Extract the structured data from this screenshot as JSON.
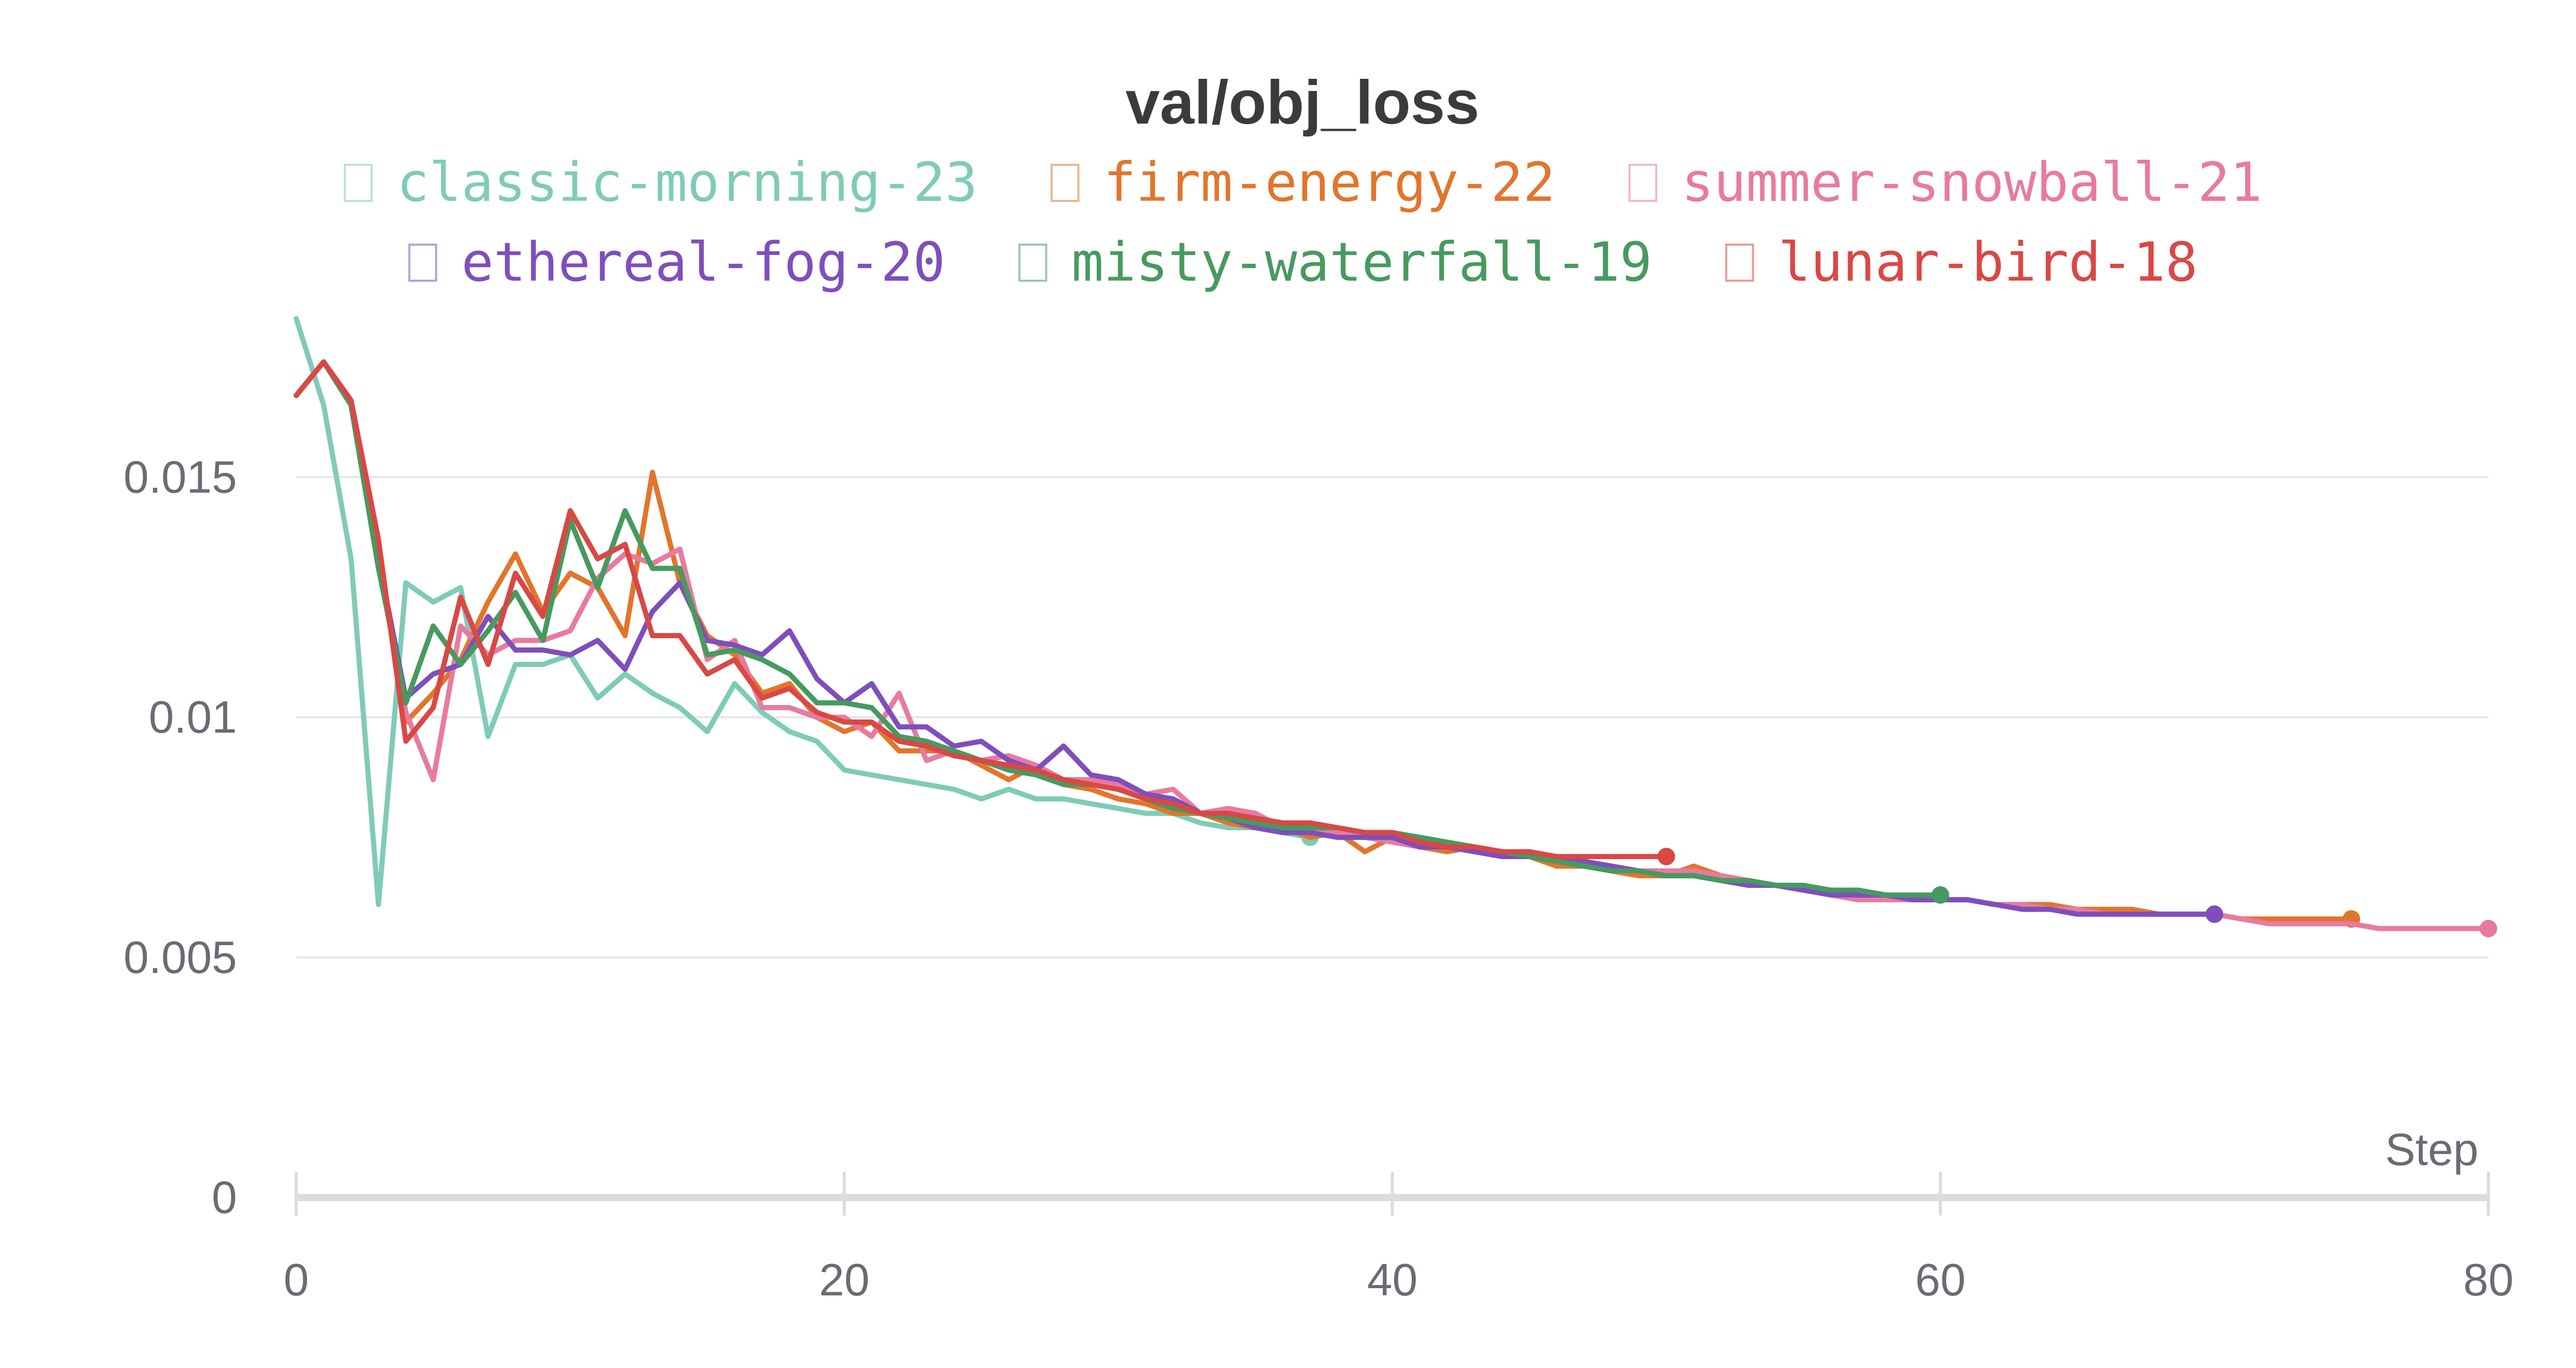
{
  "chart_data": {
    "type": "line",
    "title": "val/obj_loss",
    "xlabel": "Step",
    "ylabel": "",
    "xlim": [
      0,
      80
    ],
    "ylim": [
      0,
      0.0185
    ],
    "x_ticks": [
      0,
      20,
      40,
      60,
      80
    ],
    "x_tick_labels": [
      "0",
      "20",
      "40",
      "60",
      "80"
    ],
    "y_ticks": [
      0,
      0.005,
      0.01,
      0.015
    ],
    "y_tick_labels": [
      "0",
      "0.005",
      "0.01",
      "0.015"
    ],
    "grid": true,
    "legend_position": "top",
    "series": [
      {
        "name": "classic-morning-23",
        "color": "#7fcbb8",
        "x": [
          0,
          1,
          2,
          3,
          4,
          5,
          6,
          7,
          8,
          9,
          10,
          11,
          12,
          13,
          14,
          15,
          16,
          17,
          18,
          19,
          20,
          21,
          22,
          23,
          24,
          25,
          26,
          27,
          28,
          29,
          30,
          31,
          32,
          33,
          34,
          35,
          36,
          37
        ],
        "values": [
          0.0183,
          0.0165,
          0.0133,
          0.0061,
          0.0128,
          0.0124,
          0.0127,
          0.0096,
          0.0111,
          0.0111,
          0.0113,
          0.0104,
          0.0109,
          0.0105,
          0.0102,
          0.0097,
          0.0107,
          0.0101,
          0.0097,
          0.0095,
          0.0089,
          0.0088,
          0.0087,
          0.0086,
          0.0085,
          0.0083,
          0.0085,
          0.0083,
          0.0083,
          0.0082,
          0.0081,
          0.008,
          0.008,
          0.0078,
          0.0077,
          0.0077,
          0.0076,
          0.0075
        ]
      },
      {
        "name": "firm-energy-22",
        "color": "#e2752c",
        "x": [
          0,
          1,
          2,
          3,
          4,
          5,
          6,
          7,
          8,
          9,
          10,
          11,
          12,
          13,
          14,
          15,
          16,
          17,
          18,
          19,
          20,
          21,
          22,
          23,
          24,
          25,
          26,
          27,
          28,
          29,
          30,
          31,
          32,
          33,
          34,
          35,
          36,
          37,
          38,
          39,
          40,
          41,
          42,
          43,
          44,
          45,
          46,
          47,
          48,
          49,
          50,
          51,
          52,
          53,
          54,
          55,
          56,
          57,
          58,
          59,
          60,
          61,
          62,
          63,
          64,
          65,
          66,
          67,
          68,
          69,
          70,
          71,
          72,
          73,
          74,
          75
        ],
        "values": [
          0.0167,
          0.0174,
          0.0165,
          0.0134,
          0.0099,
          0.0105,
          0.0112,
          0.0124,
          0.0134,
          0.0122,
          0.013,
          0.0127,
          0.0117,
          0.0151,
          0.0128,
          0.0117,
          0.0113,
          0.0105,
          0.0107,
          0.01,
          0.0097,
          0.0099,
          0.0093,
          0.0093,
          0.0093,
          0.009,
          0.0087,
          0.009,
          0.0086,
          0.0085,
          0.0083,
          0.0082,
          0.008,
          0.008,
          0.0078,
          0.0077,
          0.0077,
          0.0075,
          0.0076,
          0.0072,
          0.0075,
          0.0073,
          0.0072,
          0.0073,
          0.0072,
          0.0071,
          0.0069,
          0.0069,
          0.0068,
          0.0067,
          0.0067,
          0.0069,
          0.0067,
          0.0066,
          0.0065,
          0.0064,
          0.0064,
          0.0063,
          0.0063,
          0.0062,
          0.0062,
          0.0062,
          0.0061,
          0.0061,
          0.0061,
          0.006,
          0.006,
          0.006,
          0.0059,
          0.0059,
          0.0059,
          0.0058,
          0.0058,
          0.0058,
          0.0058,
          0.0058
        ]
      },
      {
        "name": "summer-snowball-21",
        "color": "#e87aa0",
        "x": [
          0,
          1,
          2,
          3,
          4,
          5,
          6,
          7,
          8,
          9,
          10,
          11,
          12,
          13,
          14,
          15,
          16,
          17,
          18,
          19,
          20,
          21,
          22,
          23,
          24,
          25,
          26,
          27,
          28,
          29,
          30,
          31,
          32,
          33,
          34,
          35,
          36,
          37,
          38,
          39,
          40,
          41,
          42,
          43,
          44,
          45,
          46,
          47,
          48,
          49,
          50,
          51,
          52,
          53,
          54,
          55,
          56,
          57,
          58,
          59,
          60,
          61,
          62,
          63,
          64,
          65,
          66,
          67,
          68,
          69,
          70,
          71,
          72,
          73,
          74,
          75,
          76,
          77,
          78,
          79,
          80
        ],
        "values": [
          0.0167,
          0.0174,
          0.0165,
          0.0132,
          0.0101,
          0.0087,
          0.0119,
          0.0113,
          0.0116,
          0.0116,
          0.0118,
          0.0129,
          0.0134,
          0.0132,
          0.0135,
          0.0112,
          0.0116,
          0.0102,
          0.0102,
          0.01,
          0.01,
          0.0096,
          0.0105,
          0.0091,
          0.0093,
          0.0091,
          0.0092,
          0.009,
          0.0087,
          0.0087,
          0.0086,
          0.0084,
          0.0085,
          0.008,
          0.0081,
          0.008,
          0.0077,
          0.0077,
          0.0076,
          0.0075,
          0.0074,
          0.0073,
          0.0073,
          0.0072,
          0.0071,
          0.0071,
          0.007,
          0.007,
          0.0068,
          0.0068,
          0.0068,
          0.0068,
          0.0067,
          0.0066,
          0.0065,
          0.0064,
          0.0063,
          0.0062,
          0.0062,
          0.0062,
          0.0062,
          0.0062,
          0.0061,
          0.0061,
          0.006,
          0.006,
          0.0059,
          0.0059,
          0.0059,
          0.0059,
          0.0059,
          0.0058,
          0.0057,
          0.0057,
          0.0057,
          0.0057,
          0.0056,
          0.0056,
          0.0056,
          0.0056,
          0.0056
        ]
      },
      {
        "name": "ethereal-fog-20",
        "color": "#7e4fbc",
        "x": [
          0,
          1,
          2,
          3,
          4,
          5,
          6,
          7,
          8,
          9,
          10,
          11,
          12,
          13,
          14,
          15,
          16,
          17,
          18,
          19,
          20,
          21,
          22,
          23,
          24,
          25,
          26,
          27,
          28,
          29,
          30,
          31,
          32,
          33,
          34,
          35,
          36,
          37,
          38,
          39,
          40,
          41,
          42,
          43,
          44,
          45,
          46,
          47,
          48,
          49,
          50,
          51,
          52,
          53,
          54,
          55,
          56,
          57,
          58,
          59,
          60,
          61,
          62,
          63,
          64,
          65,
          66,
          67,
          68,
          69,
          70
        ],
        "values": [
          0.0167,
          0.0174,
          0.0165,
          0.0133,
          0.0104,
          0.0109,
          0.0111,
          0.0121,
          0.0114,
          0.0114,
          0.0113,
          0.0116,
          0.011,
          0.0122,
          0.0128,
          0.0116,
          0.0115,
          0.0113,
          0.0118,
          0.0108,
          0.0103,
          0.0107,
          0.0098,
          0.0098,
          0.0094,
          0.0095,
          0.0091,
          0.0089,
          0.0094,
          0.0088,
          0.0087,
          0.0084,
          0.0083,
          0.008,
          0.0079,
          0.0077,
          0.0076,
          0.0076,
          0.0075,
          0.0075,
          0.0075,
          0.0073,
          0.0073,
          0.0072,
          0.0071,
          0.0071,
          0.007,
          0.007,
          0.0069,
          0.0068,
          0.0067,
          0.0067,
          0.0066,
          0.0065,
          0.0065,
          0.0064,
          0.0063,
          0.0063,
          0.0063,
          0.0062,
          0.0062,
          0.0062,
          0.0061,
          0.006,
          0.006,
          0.0059,
          0.0059,
          0.0059,
          0.0059,
          0.0059,
          0.0059
        ]
      },
      {
        "name": "misty-waterfall-19",
        "color": "#479a5f",
        "x": [
          0,
          1,
          2,
          3,
          4,
          5,
          6,
          7,
          8,
          9,
          10,
          11,
          12,
          13,
          14,
          15,
          16,
          17,
          18,
          19,
          20,
          21,
          22,
          23,
          24,
          25,
          26,
          27,
          28,
          29,
          30,
          31,
          32,
          33,
          34,
          35,
          36,
          37,
          38,
          39,
          40,
          41,
          42,
          43,
          44,
          45,
          46,
          47,
          48,
          49,
          50,
          51,
          52,
          53,
          54,
          55,
          56,
          57,
          58,
          59,
          60
        ],
        "values": [
          0.0167,
          0.0174,
          0.0165,
          0.0131,
          0.0103,
          0.0119,
          0.0111,
          0.0118,
          0.0126,
          0.0116,
          0.0141,
          0.0127,
          0.0143,
          0.0131,
          0.0131,
          0.0113,
          0.0114,
          0.0112,
          0.0109,
          0.0103,
          0.0103,
          0.0102,
          0.0096,
          0.0095,
          0.0093,
          0.0091,
          0.0089,
          0.0088,
          0.0086,
          0.0086,
          0.0085,
          0.0083,
          0.0081,
          0.008,
          0.0079,
          0.0078,
          0.0077,
          0.0077,
          0.0077,
          0.0076,
          0.0076,
          0.0075,
          0.0074,
          0.0073,
          0.0072,
          0.0071,
          0.007,
          0.0069,
          0.0068,
          0.0068,
          0.0067,
          0.0067,
          0.0066,
          0.0066,
          0.0065,
          0.0065,
          0.0064,
          0.0064,
          0.0063,
          0.0063,
          0.0063
        ]
      },
      {
        "name": "lunar-bird-18",
        "color": "#d94845",
        "x": [
          0,
          1,
          2,
          3,
          4,
          5,
          6,
          7,
          8,
          9,
          10,
          11,
          12,
          13,
          14,
          15,
          16,
          17,
          18,
          19,
          20,
          21,
          22,
          23,
          24,
          25,
          26,
          27,
          28,
          29,
          30,
          31,
          32,
          33,
          34,
          35,
          36,
          37,
          38,
          39,
          40,
          41,
          42,
          43,
          44,
          45,
          46,
          47,
          48,
          49,
          50
        ],
        "values": [
          0.0167,
          0.0174,
          0.0166,
          0.0137,
          0.0095,
          0.0102,
          0.0125,
          0.0111,
          0.013,
          0.0121,
          0.0143,
          0.0133,
          0.0136,
          0.0117,
          0.0117,
          0.0109,
          0.0112,
          0.0104,
          0.0106,
          0.0101,
          0.0099,
          0.0099,
          0.0095,
          0.0094,
          0.0092,
          0.0091,
          0.009,
          0.0089,
          0.0087,
          0.0086,
          0.0085,
          0.0083,
          0.0082,
          0.008,
          0.008,
          0.0079,
          0.0078,
          0.0078,
          0.0077,
          0.0076,
          0.0076,
          0.0074,
          0.0073,
          0.0073,
          0.0072,
          0.0072,
          0.0071,
          0.0071,
          0.0071,
          0.0071,
          0.0071
        ]
      }
    ]
  }
}
